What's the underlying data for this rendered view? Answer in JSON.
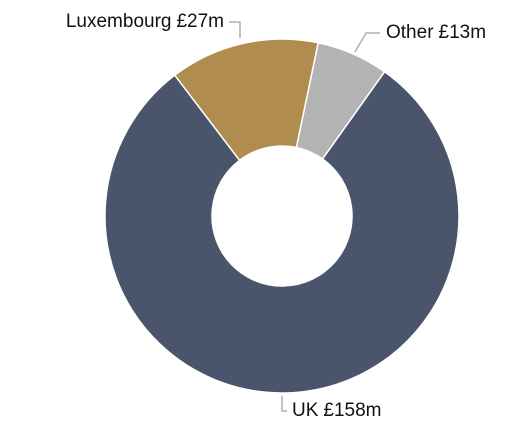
{
  "chart_data": {
    "type": "donut",
    "categories": [
      "Other",
      "UK",
      "Luxembourg"
    ],
    "values": [
      13,
      158,
      27
    ],
    "value_labels": [
      "£13m",
      "£158m",
      "£27m"
    ],
    "colors": [
      "#b3b3b3",
      "#4a546b",
      "#b08d4f"
    ]
  }
}
